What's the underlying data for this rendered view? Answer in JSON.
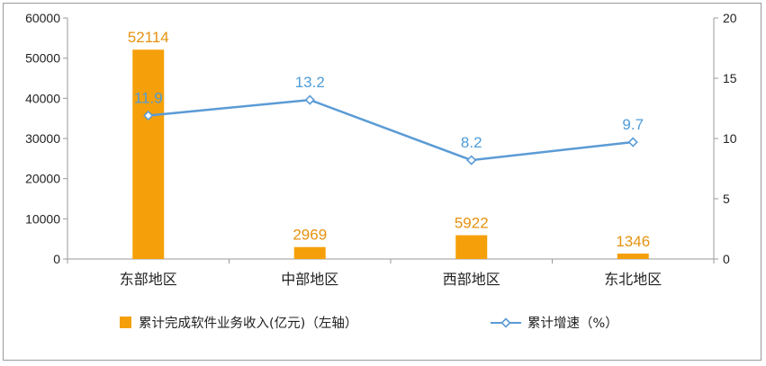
{
  "chart_data": {
    "type": "bar",
    "categories": [
      "东部地区",
      "中部地区",
      "西部地区",
      "东北地区"
    ],
    "series": [
      {
        "name": "累计完成软件业务收入(亿元)（左轴）",
        "type": "bar",
        "axis": "left",
        "values": [
          52114,
          2969,
          5922,
          1346
        ],
        "color": "#f5a00a"
      },
      {
        "name": "累计增速（%）",
        "type": "line",
        "axis": "right",
        "values": [
          11.9,
          13.2,
          8.2,
          9.7
        ],
        "color": "#5b9bd5"
      }
    ],
    "left_axis": {
      "min": 0,
      "max": 60000,
      "step": 10000,
      "ticks": [
        "0",
        "10000",
        "20000",
        "30000",
        "40000",
        "50000",
        "60000"
      ]
    },
    "right_axis": {
      "min": 0,
      "max": 20,
      "step": 5,
      "ticks": [
        "0",
        "5",
        "10",
        "15",
        "20"
      ]
    },
    "bar_labels": [
      "52114",
      "2969",
      "5922",
      "1346"
    ],
    "line_labels": [
      "11.9",
      "13.2",
      "8.2",
      "9.7"
    ],
    "grid": false,
    "legend_position": "bottom"
  }
}
